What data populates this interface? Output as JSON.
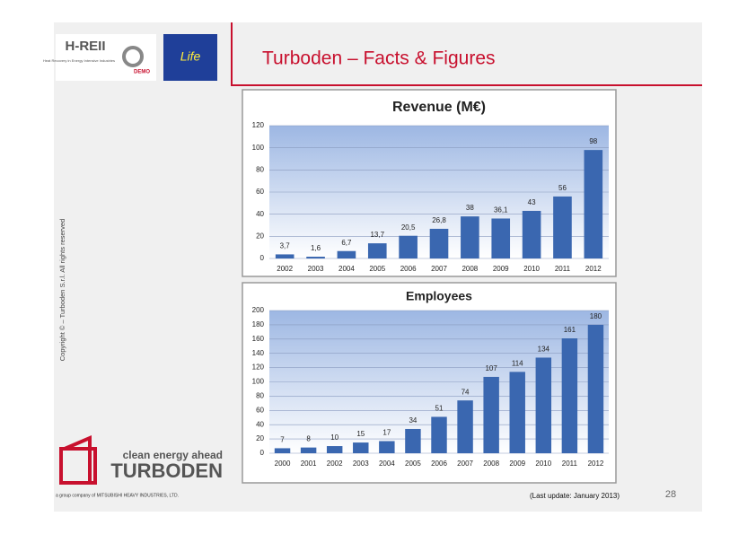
{
  "slide": {
    "title": "Turboden – Facts & Figures",
    "copyright": "Copyright © – Turboden S.r.l. All rights reserved",
    "update": "(Last update: January 2013)",
    "page_number": 28,
    "logo_tagline": "clean energy ahead",
    "logo_name": "TURBODEN",
    "logo_parent": "a group company of MITSUBISHI HEAVY INDUSTRIES, LTD.",
    "hreii": "H-REII",
    "hreii_sub": "Heat Recovery in Energy Intensive Industries",
    "demo": "DEMO",
    "life": "Life"
  },
  "chart_data": [
    {
      "type": "bar",
      "title": "Revenue (M€)",
      "categories": [
        "2002",
        "2003",
        "2004",
        "2005",
        "2006",
        "2007",
        "2008",
        "2009",
        "2010",
        "2011",
        "2012"
      ],
      "values": [
        3.7,
        1.6,
        6.7,
        13.7,
        20.5,
        26.8,
        38,
        36.1,
        43,
        56,
        98
      ],
      "value_labels": [
        "3,7",
        "1,6",
        "6,7",
        "13,7",
        "20,5",
        "26,8",
        "38",
        "36,1",
        "43",
        "56",
        "98"
      ],
      "color": "#3a67b0",
      "ylim": [
        0,
        120
      ],
      "yticks": [
        0,
        20,
        40,
        60,
        80,
        100,
        120
      ],
      "grid": true
    },
    {
      "type": "bar",
      "title": "Employees",
      "categories": [
        "2000",
        "2001",
        "2002",
        "2003",
        "2004",
        "2005",
        "2006",
        "2007",
        "2008",
        "2009",
        "2010",
        "2011",
        "2012"
      ],
      "values": [
        7,
        8,
        10,
        15,
        17,
        34,
        51,
        74,
        107,
        114,
        134,
        161,
        180
      ],
      "color": "#3a67b0",
      "ylim": [
        0,
        200
      ],
      "yticks": [
        0,
        20,
        40,
        60,
        80,
        100,
        120,
        140,
        160,
        180,
        200
      ],
      "grid": true
    }
  ]
}
